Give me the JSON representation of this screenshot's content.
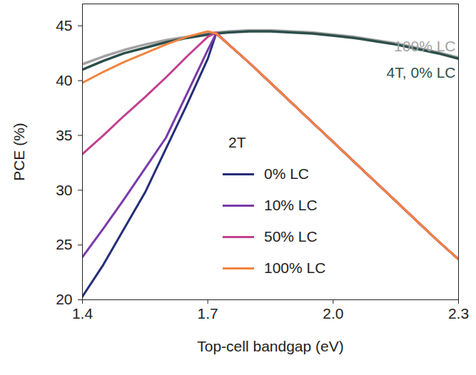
{
  "chart_data": {
    "type": "line",
    "x_label": "Top-cell bandgap (eV)",
    "y_label": "PCE (%)",
    "legend_title": "2T",
    "legend": "center",
    "grid": false,
    "xlim": [
      1.4,
      2.3
    ],
    "xticks": [
      1.4,
      1.7,
      {
        "value": 2,
        "label": "2.0"
      },
      2.3
    ],
    "ylim": [
      20,
      47
    ],
    "yticks": [
      20,
      25,
      30,
      35,
      40,
      45
    ],
    "x": [
      1.4,
      1.45,
      1.5,
      1.55,
      1.6,
      1.65,
      1.7,
      1.72,
      1.75,
      1.8,
      1.85,
      1.9,
      1.95,
      2.0,
      2.05,
      2.1,
      2.15,
      2.2,
      2.25,
      2.3
    ],
    "series": [
      {
        "name": "100% LC",
        "color": "#a3a3a3",
        "legend": false,
        "values": [
          41.5,
          42.2,
          42.8,
          43.3,
          43.7,
          44.0,
          44.3,
          44.4,
          44.5,
          44.6,
          44.6,
          44.5,
          44.4,
          44.2,
          44.0,
          43.7,
          43.4,
          43.0,
          42.6,
          42.1
        ]
      },
      {
        "name": "4T, 0% LC",
        "color": "#2c4f4b",
        "legend": false,
        "values": [
          41.0,
          41.8,
          42.5,
          43.0,
          43.5,
          43.9,
          44.2,
          44.3,
          44.4,
          44.5,
          44.5,
          44.4,
          44.3,
          44.1,
          43.9,
          43.6,
          43.3,
          42.9,
          42.5,
          42.0
        ]
      },
      {
        "name": "0% LC",
        "color": "#262d7a",
        "values": [
          20.3,
          23.2,
          26.5,
          29.8,
          33.8,
          37.8,
          42.0,
          44.3,
          43.3,
          41.6,
          39.8,
          38.0,
          36.2,
          34.4,
          32.6,
          30.8,
          29.0,
          27.2,
          25.4,
          23.7
        ]
      },
      {
        "name": "10% LC",
        "color": "#7a3aa8",
        "values": [
          23.9,
          26.5,
          29.2,
          32.0,
          34.8,
          38.8,
          42.8,
          44.3,
          43.3,
          41.6,
          39.8,
          38.0,
          36.2,
          34.4,
          32.6,
          30.8,
          29.0,
          27.2,
          25.4,
          23.7
        ]
      },
      {
        "name": "50% LC",
        "color": "#c2408f",
        "values": [
          33.3,
          35.0,
          36.8,
          38.5,
          40.3,
          42.2,
          44.0,
          44.4,
          43.3,
          41.6,
          39.8,
          38.0,
          36.2,
          34.4,
          32.6,
          30.8,
          29.0,
          27.2,
          25.4,
          23.7
        ]
      },
      {
        "name": "100% LC",
        "color": "#f2843f",
        "values": [
          39.8,
          40.8,
          41.7,
          42.5,
          43.3,
          44.0,
          44.5,
          44.3,
          43.3,
          41.6,
          39.8,
          38.0,
          36.2,
          34.4,
          32.6,
          30.8,
          29.0,
          27.2,
          25.4,
          23.7
        ]
      }
    ]
  }
}
